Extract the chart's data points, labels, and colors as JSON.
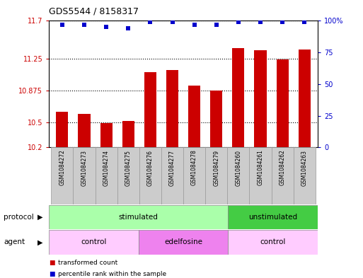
{
  "title": "GDS5544 / 8158317",
  "samples": [
    "GSM1084272",
    "GSM1084273",
    "GSM1084274",
    "GSM1084275",
    "GSM1084276",
    "GSM1084277",
    "GSM1084278",
    "GSM1084279",
    "GSM1084260",
    "GSM1084261",
    "GSM1084262",
    "GSM1084263"
  ],
  "bar_values": [
    10.62,
    10.6,
    10.49,
    10.51,
    11.09,
    11.12,
    10.93,
    10.87,
    11.38,
    11.35,
    11.24,
    11.36
  ],
  "dot_values": [
    97,
    97,
    95,
    94,
    99,
    99,
    97,
    97,
    99,
    99,
    99,
    99
  ],
  "ylim_left": [
    10.2,
    11.7
  ],
  "ylim_right": [
    0,
    100
  ],
  "yticks_left": [
    10.2,
    10.5,
    10.875,
    11.25,
    11.7
  ],
  "ytick_labels_left": [
    "10.2",
    "10.5",
    "10.875",
    "11.25",
    "11.7"
  ],
  "yticks_right": [
    0,
    25,
    50,
    75,
    100
  ],
  "ytick_labels_right": [
    "0",
    "25",
    "50",
    "75",
    "100%"
  ],
  "bar_color": "#CC0000",
  "dot_color": "#0000CC",
  "protocol_groups": [
    {
      "label": "stimulated",
      "start": 0,
      "end": 8,
      "color": "#AAFFAA"
    },
    {
      "label": "unstimulated",
      "start": 8,
      "end": 12,
      "color": "#44CC44"
    }
  ],
  "agent_groups": [
    {
      "label": "control",
      "start": 0,
      "end": 4,
      "color": "#FFCCFF"
    },
    {
      "label": "edelfosine",
      "start": 4,
      "end": 8,
      "color": "#EE82EE"
    },
    {
      "label": "control",
      "start": 8,
      "end": 12,
      "color": "#FFCCFF"
    }
  ],
  "protocol_label": "protocol",
  "agent_label": "agent",
  "legend_items": [
    {
      "label": "transformed count",
      "color": "#CC0000"
    },
    {
      "label": "percentile rank within the sample",
      "color": "#0000CC"
    }
  ],
  "bg_color": "#FFFFFF",
  "grid_color": "#333333",
  "tick_color_left": "#CC0000",
  "tick_color_right": "#0000CC",
  "box_color": "#CCCCCC"
}
